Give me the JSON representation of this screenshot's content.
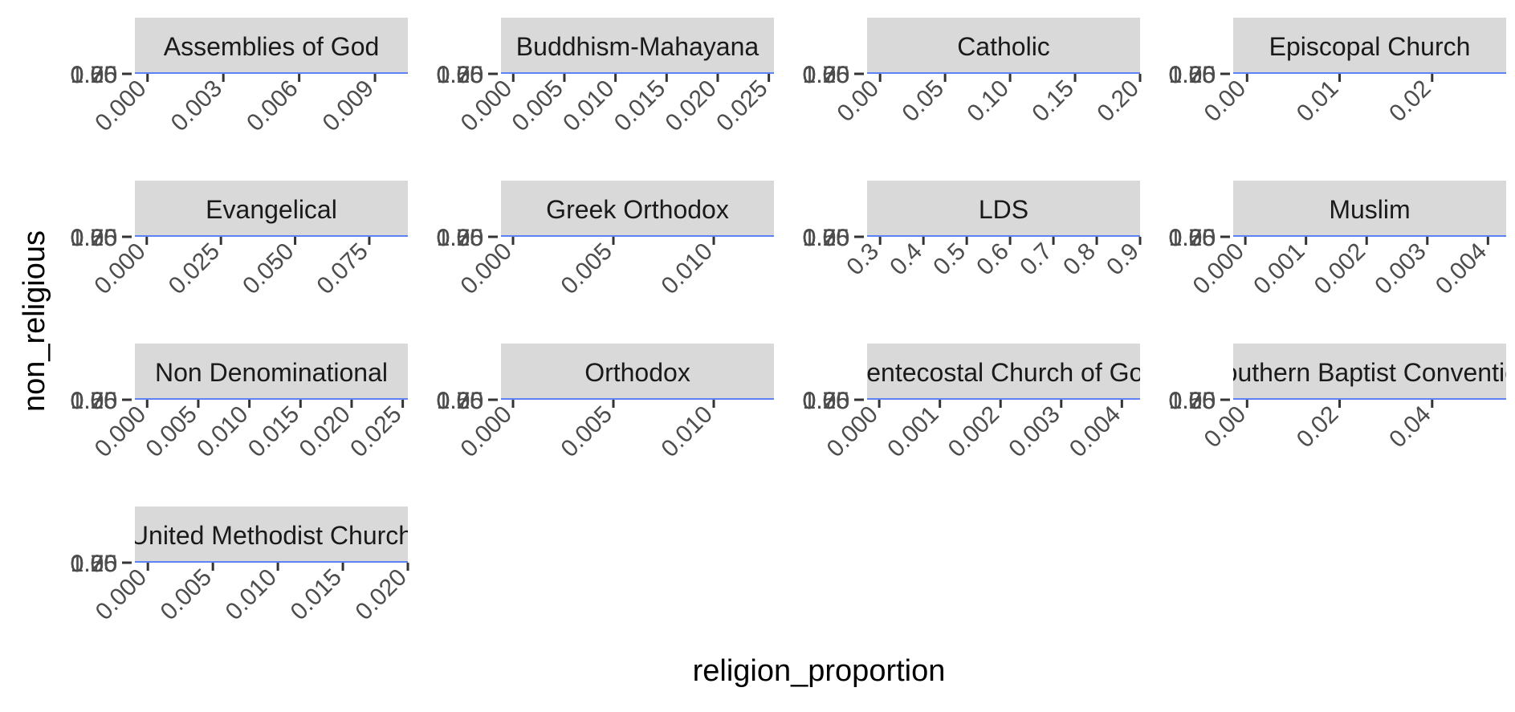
{
  "chart_data": {
    "type": "scatter",
    "layout": "facet_wrap",
    "ncol": 4,
    "xlabel": "religion_proportion",
    "ylabel": "non_religious",
    "y_tick_labels_overlapping": [
      "0.00",
      "0.25",
      "0.50",
      "0.75",
      "1.00"
    ],
    "colors": {
      "strip_background": "#d9d9d9",
      "strip_text": "#1a1a1a",
      "tick_text": "#4d4d4d",
      "tick_mark": "#333333",
      "trend_line": "#3366ff"
    },
    "facets": [
      {
        "label": "Assemblies of God",
        "xlim": [
          -0.0005,
          0.0103
        ],
        "xticks": [
          0,
          0.003,
          0.006,
          0.009
        ],
        "xtick_labels": [
          "0.000",
          "0.003",
          "0.006",
          "0.009"
        ]
      },
      {
        "label": "Buddhism-Mahayana",
        "xlim": [
          -0.0012,
          0.0255
        ],
        "xticks": [
          0,
          0.005,
          0.01,
          0.015,
          0.02,
          0.025
        ],
        "xtick_labels": [
          "0.000",
          "0.005",
          "0.010",
          "0.015",
          "0.020",
          "0.025"
        ]
      },
      {
        "label": "Catholic",
        "xlim": [
          -0.01,
          0.2
        ],
        "xticks": [
          0,
          0.05,
          0.1,
          0.15,
          0.2
        ],
        "xtick_labels": [
          "0.00",
          "0.05",
          "0.10",
          "0.15",
          "0.20"
        ]
      },
      {
        "label": "Episcopal Church",
        "xlim": [
          -0.0015,
          0.028
        ],
        "xticks": [
          0,
          0.01,
          0.02
        ],
        "xtick_labels": [
          "0.00",
          "0.01",
          "0.02"
        ]
      },
      {
        "label": "Evangelical",
        "xlim": [
          -0.004,
          0.088
        ],
        "xticks": [
          0,
          0.025,
          0.05,
          0.075
        ],
        "xtick_labels": [
          "0.000",
          "0.025",
          "0.050",
          "0.075"
        ]
      },
      {
        "label": "Greek Orthodox",
        "xlim": [
          -0.0006,
          0.013
        ],
        "xticks": [
          0,
          0.005,
          0.01
        ],
        "xtick_labels": [
          "0.000",
          "0.005",
          "0.010"
        ]
      },
      {
        "label": "LDS",
        "xlim": [
          0.27,
          0.9
        ],
        "xticks": [
          0.3,
          0.4,
          0.5,
          0.6,
          0.7,
          0.8,
          0.9
        ],
        "xtick_labels": [
          "0.3",
          "0.4",
          "0.5",
          "0.6",
          "0.7",
          "0.8",
          "0.9"
        ]
      },
      {
        "label": "Muslim",
        "xlim": [
          -0.0002,
          0.0043
        ],
        "xticks": [
          0,
          0.001,
          0.002,
          0.003,
          0.004
        ],
        "xtick_labels": [
          "0.000",
          "0.001",
          "0.002",
          "0.003",
          "0.004"
        ]
      },
      {
        "label": "Non Denominational",
        "xlim": [
          -0.0012,
          0.0255
        ],
        "xticks": [
          0,
          0.005,
          0.01,
          0.015,
          0.02,
          0.025
        ],
        "xtick_labels": [
          "0.000",
          "0.005",
          "0.010",
          "0.015",
          "0.020",
          "0.025"
        ]
      },
      {
        "label": "Orthodox",
        "xlim": [
          -0.0006,
          0.013
        ],
        "xticks": [
          0,
          0.005,
          0.01
        ],
        "xtick_labels": [
          "0.000",
          "0.005",
          "0.010"
        ]
      },
      {
        "label": "Pentecostal Church of God",
        "xlim": [
          -0.0002,
          0.0043
        ],
        "xticks": [
          0,
          0.001,
          0.002,
          0.003,
          0.004
        ],
        "xtick_labels": [
          "0.000",
          "0.001",
          "0.002",
          "0.003",
          "0.004"
        ]
      },
      {
        "label": "Southern Baptist Convention",
        "xlim": [
          -0.003,
          0.056
        ],
        "xticks": [
          0,
          0.02,
          0.04
        ],
        "xtick_labels": [
          "0.00",
          "0.02",
          "0.04"
        ]
      },
      {
        "label": "United Methodist Church",
        "xlim": [
          -0.001,
          0.02
        ],
        "xticks": [
          0,
          0.005,
          0.01,
          0.015,
          0.02
        ],
        "xtick_labels": [
          "0.000",
          "0.005",
          "0.010",
          "0.015",
          "0.020"
        ]
      }
    ]
  }
}
